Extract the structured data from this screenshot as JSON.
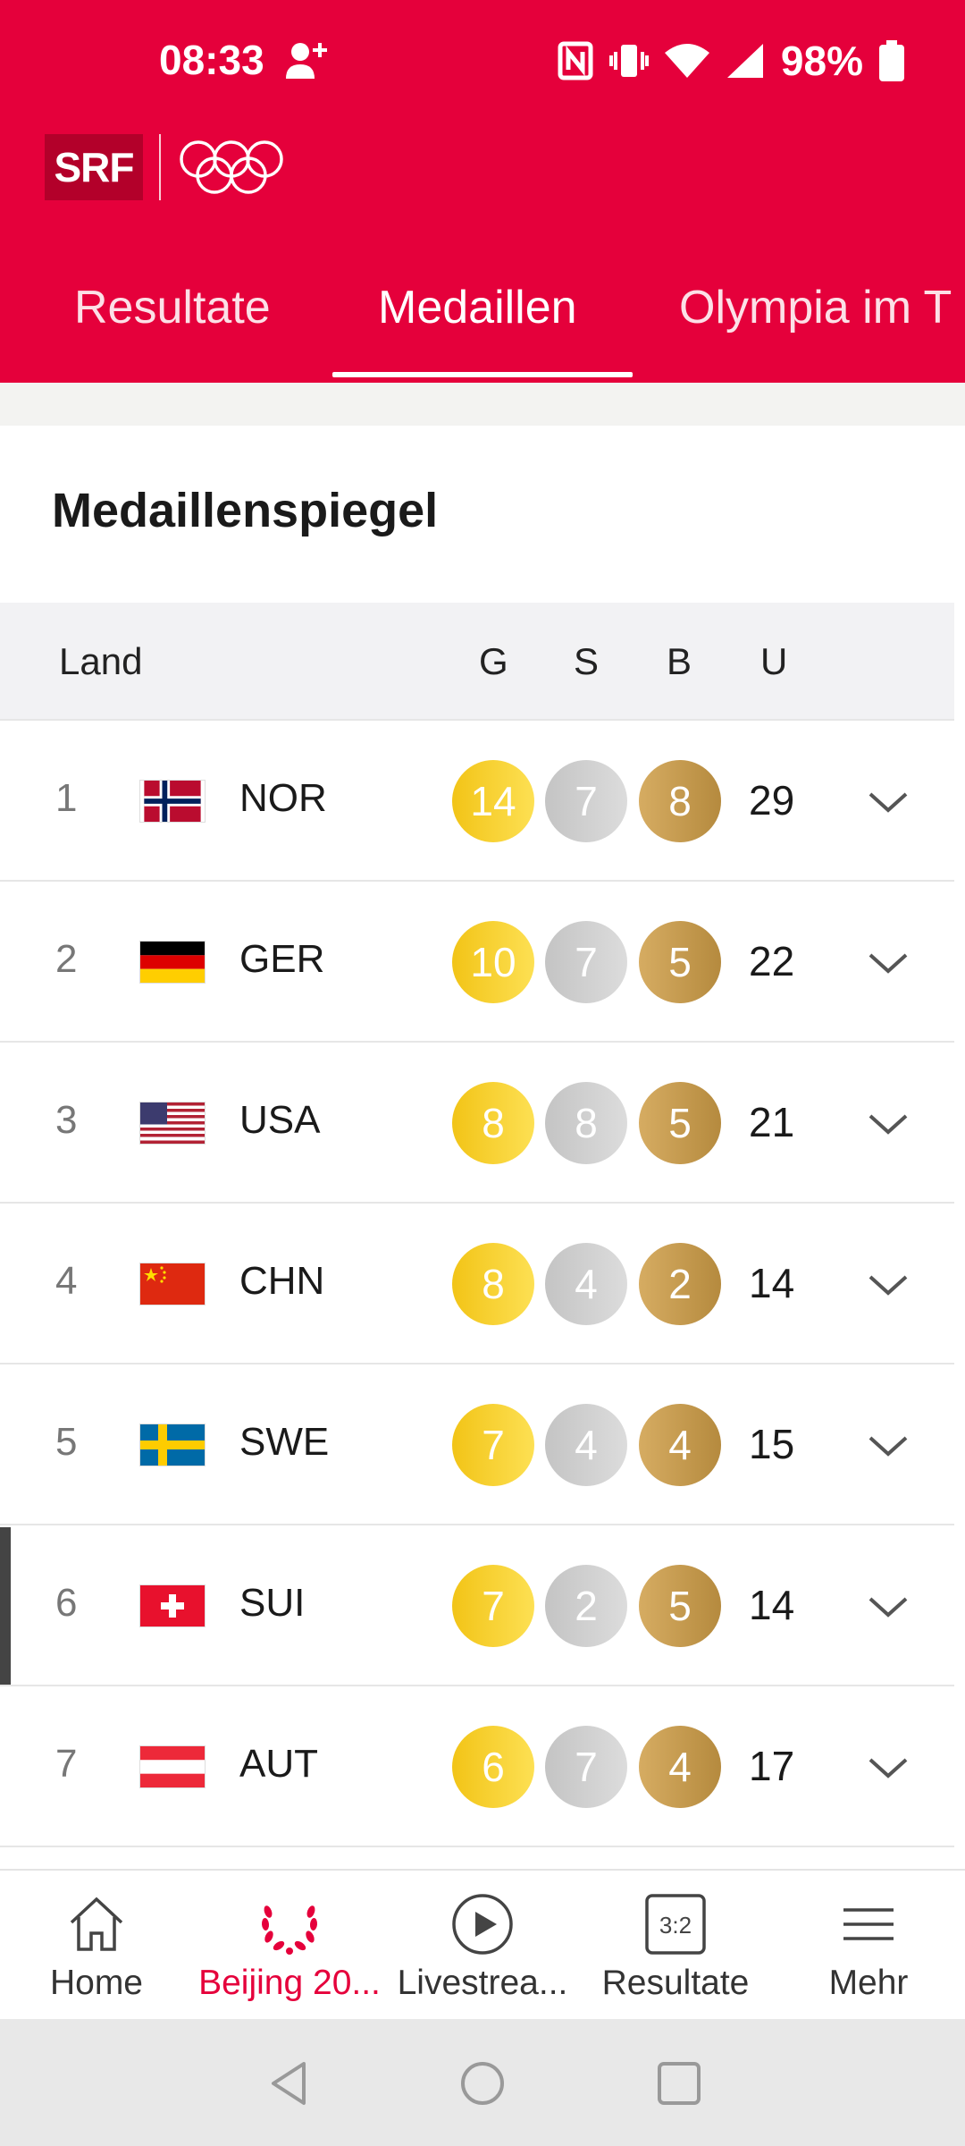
{
  "status_bar": {
    "time": "08:33",
    "battery": "98%"
  },
  "tabs": [
    {
      "label": "Resultate"
    },
    {
      "label": "Medaillen"
    },
    {
      "label": "Olympia im T"
    }
  ],
  "card": {
    "title": "Medaillenspiegel"
  },
  "table": {
    "headers": {
      "land": "Land",
      "g": "G",
      "s": "S",
      "b": "B",
      "u": "U"
    },
    "rows": [
      {
        "rank": "1",
        "country": "NOR",
        "gold": "14",
        "silver": "7",
        "bronze": "8",
        "total": "29"
      },
      {
        "rank": "2",
        "country": "GER",
        "gold": "10",
        "silver": "7",
        "bronze": "5",
        "total": "22"
      },
      {
        "rank": "3",
        "country": "USA",
        "gold": "8",
        "silver": "8",
        "bronze": "5",
        "total": "21"
      },
      {
        "rank": "4",
        "country": "CHN",
        "gold": "8",
        "silver": "4",
        "bronze": "2",
        "total": "14"
      },
      {
        "rank": "5",
        "country": "SWE",
        "gold": "7",
        "silver": "4",
        "bronze": "4",
        "total": "15"
      },
      {
        "rank": "6",
        "country": "SUI",
        "gold": "7",
        "silver": "2",
        "bronze": "5",
        "total": "14"
      },
      {
        "rank": "7",
        "country": "AUT",
        "gold": "6",
        "silver": "7",
        "bronze": "4",
        "total": "17"
      }
    ]
  },
  "bottom_nav": [
    {
      "label": "Home",
      "icon": "home-icon"
    },
    {
      "label": "Beijing 20...",
      "icon": "laurel-wreath-icon"
    },
    {
      "label": "Livestrea...",
      "icon": "play-circle-icon"
    },
    {
      "label": "Resultate",
      "icon": "scoreboard-icon"
    },
    {
      "label": "Mehr",
      "icon": "menu-icon"
    }
  ],
  "colors": {
    "brand_red": "#e5003b",
    "gold": "#f7d02a",
    "silver": "#cfcfcf",
    "bronze": "#c69b50"
  }
}
